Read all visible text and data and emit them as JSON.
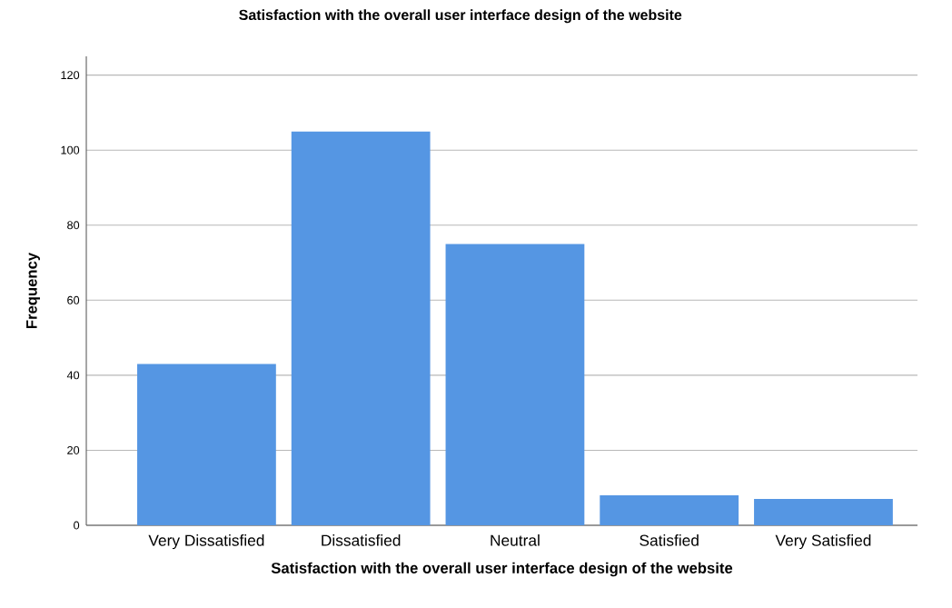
{
  "chart_data": {
    "type": "bar",
    "title": "Satisfaction with the overall user interface design of the website",
    "xlabel": "Satisfaction with the overall user interface design of the website",
    "ylabel": "Frequency",
    "categories": [
      "Very Dissatisfied",
      "Dissatisfied",
      "Neutral",
      "Satisfied",
      "Very Satisfied"
    ],
    "values": [
      43,
      105,
      75,
      8,
      7
    ],
    "color": "#5596e3",
    "ylim": [
      0,
      125
    ],
    "yticks": [
      0,
      20,
      40,
      60,
      80,
      100,
      120
    ],
    "grid": "y"
  }
}
